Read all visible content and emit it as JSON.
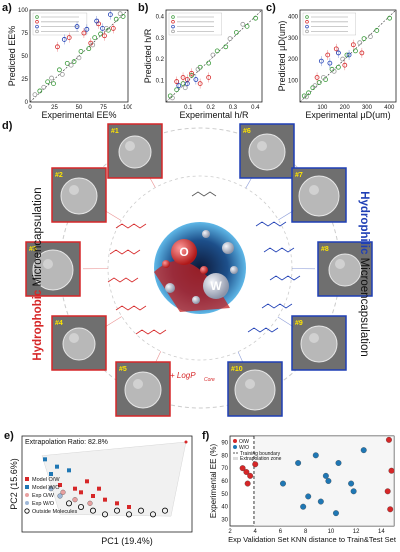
{
  "panels": {
    "a": {
      "letter": "a)",
      "xlabel": "Experimental EE%",
      "ylabel": "Predicted EE%",
      "xticks": [
        "0",
        "25",
        "50",
        "75",
        "100"
      ],
      "yticks": [
        "0",
        "25",
        "50",
        "75",
        "100"
      ]
    },
    "b": {
      "letter": "b)",
      "xlabel": "Experimental h/R",
      "ylabel": "Predicted h/R",
      "xticks": [
        "0.1",
        "0.2",
        "0.3",
        "0.4"
      ],
      "yticks": [
        "0.1",
        "0.2",
        "0.3",
        "0.4"
      ]
    },
    "c": {
      "letter": "c)",
      "xlabel": "Experimental μD(um)",
      "ylabel": "Predicted μD(um)",
      "xticks": [
        "100",
        "200",
        "300",
        "400"
      ],
      "yticks": [
        "100",
        "200",
        "300",
        "400"
      ]
    },
    "d": {
      "letter": "d)",
      "left_label_bold": "Hydrophobic",
      "left_label_rest": " Microencapsulation",
      "right_label_bold": "Hydrophilic",
      "right_label_rest": " Microencapsulation",
      "center_o": "O",
      "center_w": "W",
      "formula": "+ LogP",
      "formula_sub": "Core",
      "sem_left": [
        "#1",
        "#2",
        "#3",
        "#4",
        "#5"
      ],
      "sem_right": [
        "#6",
        "#7",
        "#8",
        "#9",
        "#10"
      ]
    },
    "e": {
      "letter": "e)",
      "annotation": "Extrapolation Ratio: 82.8%",
      "xlabel": "PC1 (19.4%)",
      "ylabel": "PC2 (15.6%)",
      "legend": [
        "Model O/W",
        "Model W/O",
        "Exp O/W",
        "Exp W/O",
        "Outside Molecules"
      ]
    },
    "f": {
      "letter": "f)",
      "xlabel": "Exp Validation Set KNN distance to Train&Test Set",
      "ylabel": "Experimental EE (%)",
      "xticks": [
        "2",
        "4",
        "6",
        "8",
        "10",
        "12",
        "14"
      ],
      "yticks": [
        "30",
        "40",
        "50",
        "60",
        "70",
        "80",
        "90"
      ],
      "legend": [
        "O/W",
        "W/O",
        "Training boundary",
        "Extrapolation zone"
      ]
    }
  },
  "chart_data": [
    {
      "type": "scatter",
      "panel": "a",
      "xlabel": "Experimental EE%",
      "ylabel": "Predicted EE%",
      "xlim": [
        0,
        100
      ],
      "ylim": [
        0,
        100
      ],
      "series": [
        {
          "color": "#3a9a3a",
          "points": [
            [
              10,
              12
            ],
            [
              18,
              22
            ],
            [
              24,
              20
            ],
            [
              30,
              35
            ],
            [
              38,
              42
            ],
            [
              45,
              44
            ],
            [
              52,
              55
            ],
            [
              60,
              58
            ],
            [
              66,
              70
            ],
            [
              72,
              74
            ],
            [
              80,
              78
            ],
            [
              88,
              90
            ],
            [
              95,
              93
            ]
          ]
        },
        {
          "color": "#d62728",
          "points": [
            [
              28,
              60
            ],
            [
              40,
              70
            ],
            [
              55,
              75
            ],
            [
              62,
              64
            ],
            [
              70,
              85
            ],
            [
              76,
              72
            ],
            [
              85,
              80
            ]
          ]
        },
        {
          "color": "#1f3fb5",
          "points": [
            [
              35,
              68
            ],
            [
              48,
              82
            ],
            [
              58,
              79
            ],
            [
              68,
              88
            ],
            [
              74,
              80
            ],
            [
              82,
              95
            ]
          ]
        },
        {
          "color": "#999999",
          "points": [
            [
              5,
              8
            ],
            [
              14,
              16
            ],
            [
              22,
              26
            ],
            [
              33,
              30
            ],
            [
              42,
              40
            ],
            [
              50,
              48
            ],
            [
              64,
              62
            ],
            [
              78,
              80
            ],
            [
              92,
              96
            ]
          ]
        }
      ]
    },
    {
      "type": "scatter",
      "panel": "b",
      "xlabel": "Experimental h/R",
      "ylabel": "Predicted h/R",
      "xlim": [
        0,
        0.45
      ],
      "ylim": [
        0,
        0.45
      ],
      "series": [
        {
          "color": "#3a9a3a",
          "points": [
            [
              0.02,
              0.03
            ],
            [
              0.05,
              0.06
            ],
            [
              0.08,
              0.09
            ],
            [
              0.12,
              0.13
            ],
            [
              0.16,
              0.17
            ],
            [
              0.2,
              0.19
            ],
            [
              0.24,
              0.25
            ],
            [
              0.28,
              0.27
            ],
            [
              0.33,
              0.34
            ],
            [
              0.38,
              0.37
            ],
            [
              0.42,
              0.41
            ]
          ]
        },
        {
          "color": "#d62728",
          "points": [
            [
              0.05,
              0.1
            ],
            [
              0.08,
              0.12
            ],
            [
              0.1,
              0.11
            ],
            [
              0.12,
              0.14
            ],
            [
              0.16,
              0.09
            ],
            [
              0.2,
              0.12
            ]
          ]
        },
        {
          "color": "#1f3fb5",
          "points": [
            [
              0.06,
              0.08
            ],
            [
              0.1,
              0.09
            ],
            [
              0.14,
              0.11
            ]
          ]
        },
        {
          "color": "#999999",
          "points": [
            [
              0.03,
              0.02
            ],
            [
              0.09,
              0.07
            ],
            [
              0.15,
              0.16
            ],
            [
              0.22,
              0.23
            ],
            [
              0.3,
              0.31
            ],
            [
              0.36,
              0.38
            ]
          ]
        }
      ]
    },
    {
      "type": "scatter",
      "panel": "c",
      "xlabel": "Experimental μD(um)",
      "ylabel": "Predicted μD(um)",
      "xlim": [
        0,
        450
      ],
      "ylim": [
        0,
        450
      ],
      "series": [
        {
          "color": "#3a9a3a",
          "points": [
            [
              20,
              30
            ],
            [
              40,
              45
            ],
            [
              60,
              70
            ],
            [
              90,
              95
            ],
            [
              120,
              110
            ],
            [
              150,
              160
            ],
            [
              180,
              170
            ],
            [
              220,
              230
            ],
            [
              260,
              250
            ],
            [
              300,
              310
            ],
            [
              360,
              350
            ],
            [
              420,
              410
            ]
          ]
        },
        {
          "color": "#d62728",
          "points": [
            [
              80,
              120
            ],
            [
              130,
              230
            ],
            [
              170,
              260
            ],
            [
              210,
              180
            ],
            [
              250,
              280
            ],
            [
              290,
              240
            ]
          ]
        },
        {
          "color": "#1f3fb5",
          "points": [
            [
              100,
              200
            ],
            [
              140,
              190
            ],
            [
              180,
              240
            ],
            [
              230,
              230
            ]
          ]
        },
        {
          "color": "#999999",
          "points": [
            [
              30,
              25
            ],
            [
              70,
              80
            ],
            [
              110,
              120
            ],
            [
              160,
              150
            ],
            [
              200,
              210
            ],
            [
              280,
              290
            ],
            [
              330,
              320
            ]
          ]
        }
      ]
    },
    {
      "type": "scatter",
      "panel": "e",
      "xlabel": "PC1 (19.4%)",
      "ylabel": "PC2 (15.6%)",
      "series": [
        {
          "name": "Model O/W",
          "color": "#d62728",
          "points": [
            [
              1.5,
              1.2
            ],
            [
              2.0,
              1.0
            ],
            [
              2.2,
              0.8
            ],
            [
              2.6,
              0.6
            ],
            [
              3.0,
              0.4
            ],
            [
              3.4,
              0.2
            ],
            [
              3.8,
              0.0
            ],
            [
              2.4,
              1.4
            ],
            [
              2.8,
              1.0
            ]
          ]
        },
        {
          "name": "Model W/O",
          "color": "#1f77b4",
          "points": [
            [
              1.0,
              2.6
            ],
            [
              1.4,
              2.2
            ],
            [
              1.2,
              1.8
            ],
            [
              1.8,
              2.0
            ]
          ]
        },
        {
          "name": "Exp O/W",
          "color": "#e8a0a0",
          "points": [
            [
              1.6,
              0.8
            ],
            [
              2.0,
              0.4
            ],
            [
              2.5,
              0.2
            ]
          ]
        },
        {
          "name": "Exp W/O",
          "color": "#9fb8d8",
          "points": [
            [
              1.2,
              1.0
            ],
            [
              1.5,
              0.6
            ]
          ]
        },
        {
          "name": "Outside Molecules",
          "color": "#000000",
          "points": [
            [
              1.8,
              0.2
            ],
            [
              2.2,
              0.0
            ],
            [
              2.6,
              -0.2
            ],
            [
              3.0,
              -0.4
            ],
            [
              3.4,
              -0.2
            ],
            [
              3.8,
              -0.4
            ],
            [
              4.2,
              -0.2
            ],
            [
              4.6,
              -0.4
            ],
            [
              5.0,
              -0.2
            ]
          ]
        }
      ]
    },
    {
      "type": "scatter",
      "panel": "f",
      "xlabel": "Exp Validation Set KNN distance to Train&Test Set",
      "ylabel": "Experimental EE (%)",
      "xlim": [
        2,
        15
      ],
      "ylim": [
        25,
        95
      ],
      "series": [
        {
          "name": "O/W",
          "color": "#d62728",
          "points": [
            [
              3.0,
              70
            ],
            [
              3.3,
              67
            ],
            [
              3.6,
              64
            ],
            [
              4.0,
              73
            ],
            [
              3.4,
              58
            ],
            [
              14.6,
              92
            ],
            [
              14.8,
              68
            ],
            [
              14.5,
              52
            ],
            [
              14.7,
              38
            ]
          ]
        },
        {
          "name": "W/O",
          "color": "#1f77b4",
          "points": [
            [
              6.2,
              58
            ],
            [
              7.4,
              74
            ],
            [
              8.8,
              80
            ],
            [
              9.6,
              64
            ],
            [
              9.8,
              60
            ],
            [
              10.6,
              74
            ],
            [
              11.6,
              58
            ],
            [
              11.8,
              52
            ],
            [
              8.2,
              48
            ],
            [
              7.8,
              40
            ],
            [
              9.2,
              44
            ],
            [
              10.4,
              35
            ],
            [
              12.6,
              84
            ]
          ]
        }
      ],
      "training_boundary_x": 3.9
    }
  ]
}
